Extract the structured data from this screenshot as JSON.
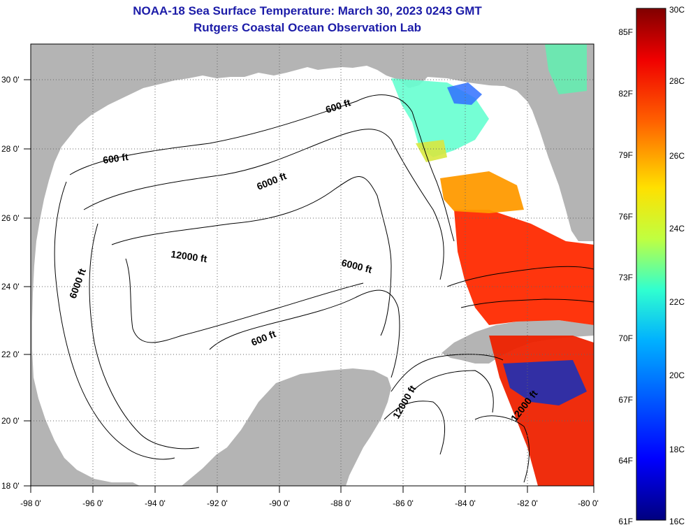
{
  "title": "NOAA-18 Sea Surface Temperature:  March 30, 2023 0243 GMT",
  "subtitle": "Rutgers Coastal Ocean Observation Lab",
  "map": {
    "lon_ticks": [
      "-98 0'",
      "-96 0'",
      "-94 0'",
      "-92 0'",
      "-90 0'",
      "-88 0'",
      "-86 0'",
      "-84 0'",
      "-82 0'",
      "-80 0'"
    ],
    "lat_ticks": [
      "18 0'",
      "20 0'",
      "22 0'",
      "24 0'",
      "26 0'",
      "28 0'",
      "30 0'"
    ],
    "contour_labels": [
      "600 ft",
      "600 ft",
      "6000 ft",
      "12000 ft",
      "6000 ft",
      "6000 ft",
      "600 ft",
      "12000 ft",
      "12000 ft"
    ],
    "colors": {
      "land": "#b4b4b4",
      "ocean": "#ffffff",
      "grid": "#555555"
    }
  },
  "colorbar": {
    "fahrenheit": [
      "85F",
      "82F",
      "79F",
      "76F",
      "73F",
      "70F",
      "67F",
      "64F",
      "61F"
    ],
    "celsius": [
      "30C",
      "28C",
      "26C",
      "24C",
      "22C",
      "20C",
      "18C",
      "16C"
    ]
  }
}
